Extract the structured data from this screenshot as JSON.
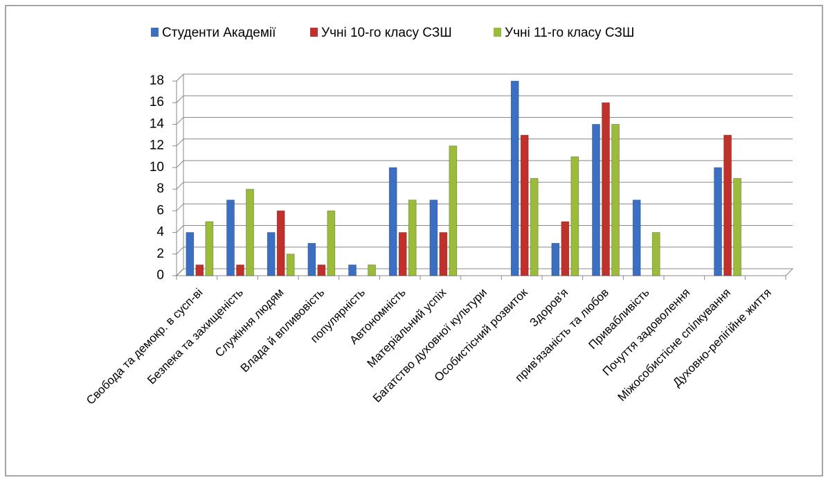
{
  "chart_data": {
    "type": "bar",
    "categories": [
      "Свобода та демокр. в сусп-ві",
      "Безпека та захищеність",
      "Служіння людям",
      "Влада й впливовість",
      "популярність",
      "Автономність",
      "Матеріальний успіх",
      "Багатство духовної культури",
      "Особистісний розвиток",
      "Здоров'я",
      "прив'язаність та любов",
      "Привабливість",
      "Почуття задоволення",
      "Міжособистісне спілкування",
      "Духовно-релігійне життя"
    ],
    "series": [
      {
        "name": "Студенти Академії",
        "color": "#3a6fc4",
        "values": [
          4,
          7,
          4,
          3,
          1,
          10,
          7,
          0,
          18,
          3,
          14,
          7,
          0,
          10,
          0
        ]
      },
      {
        "name": "Учні 10-го класу СЗШ",
        "color": "#c0312b",
        "values": [
          1,
          1,
          6,
          1,
          0,
          4,
          4,
          0,
          13,
          5,
          16,
          0,
          0,
          13,
          0
        ]
      },
      {
        "name": "Учні 11-го класу СЗШ",
        "color": "#9bbb3b",
        "values": [
          5,
          8,
          2,
          6,
          1,
          7,
          12,
          0,
          9,
          11,
          14,
          4,
          0,
          9,
          0
        ]
      }
    ],
    "ylim": [
      0,
      18
    ],
    "yticks": [
      0,
      2,
      4,
      6,
      8,
      10,
      12,
      14,
      16,
      18
    ],
    "grid": true,
    "legend": "top"
  }
}
